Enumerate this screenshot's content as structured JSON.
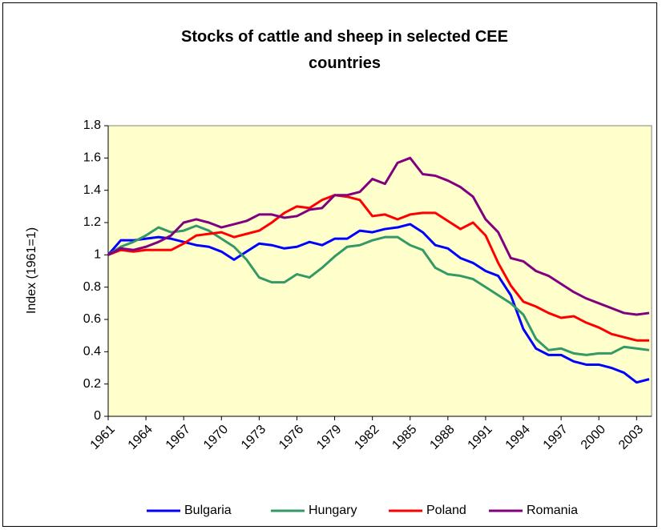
{
  "chart_data": {
    "type": "line",
    "title": "Stocks of cattle and sheep in selected CEE countries",
    "y_label": "Index (1961=1)",
    "x": [
      1961,
      1962,
      1963,
      1964,
      1965,
      1966,
      1967,
      1968,
      1969,
      1970,
      1971,
      1972,
      1973,
      1974,
      1975,
      1976,
      1977,
      1978,
      1979,
      1980,
      1981,
      1982,
      1983,
      1984,
      1985,
      1986,
      1987,
      1988,
      1989,
      1990,
      1991,
      1992,
      1993,
      1994,
      1995,
      1996,
      1997,
      1998,
      1999,
      2000,
      2001,
      2002,
      2003,
      2004
    ],
    "xlim": [
      1961,
      2004
    ],
    "xticks": [
      1961,
      1964,
      1967,
      1970,
      1973,
      1976,
      1979,
      1982,
      1985,
      1988,
      1991,
      1994,
      1997,
      2000,
      2003
    ],
    "ylim": [
      0,
      1.8
    ],
    "yticks": [
      0,
      0.2,
      0.4,
      0.6,
      0.8,
      1,
      1.2,
      1.4,
      1.6,
      1.8
    ],
    "legend": "bottom",
    "series": [
      {
        "name": "Bulgaria",
        "color": "#0000ff",
        "values": [
          1.0,
          1.09,
          1.09,
          1.1,
          1.11,
          1.1,
          1.08,
          1.06,
          1.05,
          1.02,
          0.97,
          1.02,
          1.07,
          1.06,
          1.04,
          1.05,
          1.08,
          1.06,
          1.1,
          1.1,
          1.15,
          1.14,
          1.16,
          1.17,
          1.19,
          1.14,
          1.06,
          1.04,
          0.98,
          0.95,
          0.9,
          0.87,
          0.75,
          0.54,
          0.42,
          0.38,
          0.38,
          0.34,
          0.32,
          0.32,
          0.3,
          0.27,
          0.21,
          0.23
        ]
      },
      {
        "name": "Hungary",
        "color": "#339966",
        "values": [
          1.0,
          1.05,
          1.08,
          1.12,
          1.17,
          1.14,
          1.15,
          1.18,
          1.15,
          1.1,
          1.05,
          0.97,
          0.86,
          0.83,
          0.83,
          0.88,
          0.86,
          0.92,
          0.99,
          1.05,
          1.06,
          1.09,
          1.11,
          1.11,
          1.06,
          1.03,
          0.92,
          0.88,
          0.87,
          0.85,
          0.8,
          0.75,
          0.7,
          0.63,
          0.48,
          0.41,
          0.42,
          0.39,
          0.38,
          0.39,
          0.39,
          0.43,
          0.42,
          0.41
        ]
      },
      {
        "name": "Poland",
        "color": "#ff0000",
        "values": [
          1.0,
          1.03,
          1.02,
          1.03,
          1.03,
          1.03,
          1.07,
          1.12,
          1.13,
          1.14,
          1.11,
          1.13,
          1.15,
          1.2,
          1.26,
          1.3,
          1.29,
          1.34,
          1.37,
          1.36,
          1.34,
          1.24,
          1.25,
          1.22,
          1.25,
          1.26,
          1.26,
          1.21,
          1.16,
          1.2,
          1.12,
          0.95,
          0.81,
          0.71,
          0.68,
          0.64,
          0.61,
          0.62,
          0.58,
          0.55,
          0.51,
          0.49,
          0.47,
          0.47
        ]
      },
      {
        "name": "Romania",
        "color": "#800080",
        "values": [
          1.0,
          1.04,
          1.03,
          1.05,
          1.08,
          1.12,
          1.2,
          1.22,
          1.2,
          1.17,
          1.19,
          1.21,
          1.25,
          1.25,
          1.23,
          1.24,
          1.28,
          1.29,
          1.37,
          1.37,
          1.39,
          1.47,
          1.44,
          1.57,
          1.6,
          1.5,
          1.49,
          1.46,
          1.42,
          1.36,
          1.22,
          1.14,
          0.98,
          0.96,
          0.9,
          0.87,
          0.82,
          0.77,
          0.73,
          0.7,
          0.67,
          0.64,
          0.63,
          0.64
        ]
      }
    ]
  }
}
